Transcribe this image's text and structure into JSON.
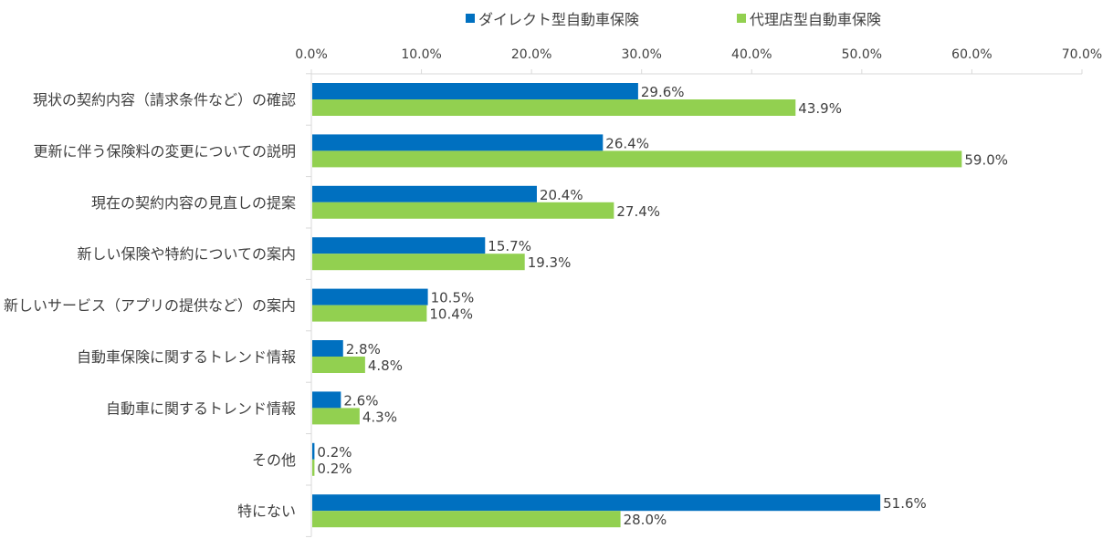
{
  "chart_data": {
    "type": "bar",
    "orientation": "horizontal",
    "categories": [
      "現状の契約内容（請求条件など）の確認",
      "更新に伴う保険料の変更についての説明",
      "現在の契約内容の見直しの提案",
      "新しい保険や特約についての案内",
      "新しいサービス（アプリの提供など）の案内",
      "自動車保険に関するトレンド情報",
      "自動車に関するトレンド情報",
      "その他",
      "特にない"
    ],
    "series": [
      {
        "name": "ダイレクト型自動車保険",
        "color": "#0070C0",
        "values": [
          29.6,
          26.4,
          20.4,
          15.7,
          10.5,
          2.8,
          2.6,
          0.2,
          51.6
        ],
        "labels": [
          "29.6%",
          "26.4%",
          "20.4%",
          "15.7%",
          "10.5%",
          "2.8%",
          "2.6%",
          "0.2%",
          "51.6%"
        ]
      },
      {
        "name": "代理店型自動車保険",
        "color": "#92D050",
        "values": [
          43.9,
          59.0,
          27.4,
          19.3,
          10.4,
          4.8,
          4.3,
          0.2,
          28.0
        ],
        "labels": [
          "43.9%",
          "59.0%",
          "27.4%",
          "19.3%",
          "10.4%",
          "4.8%",
          "4.3%",
          "0.2%",
          "28.0%"
        ]
      }
    ],
    "xlim": [
      0,
      70
    ],
    "x_ticks": [
      "0.0%",
      "10.0%",
      "20.0%",
      "30.0%",
      "40.0%",
      "50.0%",
      "60.0%",
      "70.0%"
    ],
    "x_axis_position": "top",
    "legend_position": "top",
    "grid": false
  }
}
